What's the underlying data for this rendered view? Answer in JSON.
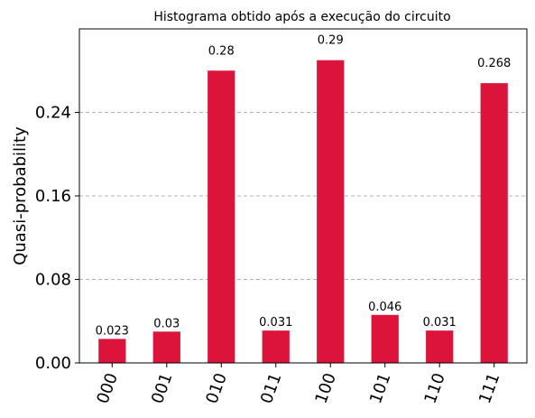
{
  "chart_data": {
    "type": "bar",
    "title": "Histograma obtido após a execução do circuito",
    "xlabel": "",
    "ylabel": "Quasi-probability",
    "categories": [
      "000",
      "001",
      "010",
      "011",
      "100",
      "101",
      "110",
      "111"
    ],
    "values": [
      0.023,
      0.03,
      0.28,
      0.031,
      0.29,
      0.046,
      0.031,
      0.268
    ],
    "data_labels": [
      "0.023",
      "0.03",
      "0.28",
      "0.031",
      "0.29",
      "0.046",
      "0.031",
      "0.268"
    ],
    "ylim": [
      0,
      0.32
    ],
    "yticks": [
      0.0,
      0.08,
      0.16,
      0.24
    ],
    "ytick_labels": [
      "0.00",
      "0.08",
      "0.16",
      "0.24"
    ],
    "grid": "y-dashed",
    "bar_color": "#dc143c",
    "legend": "none"
  }
}
